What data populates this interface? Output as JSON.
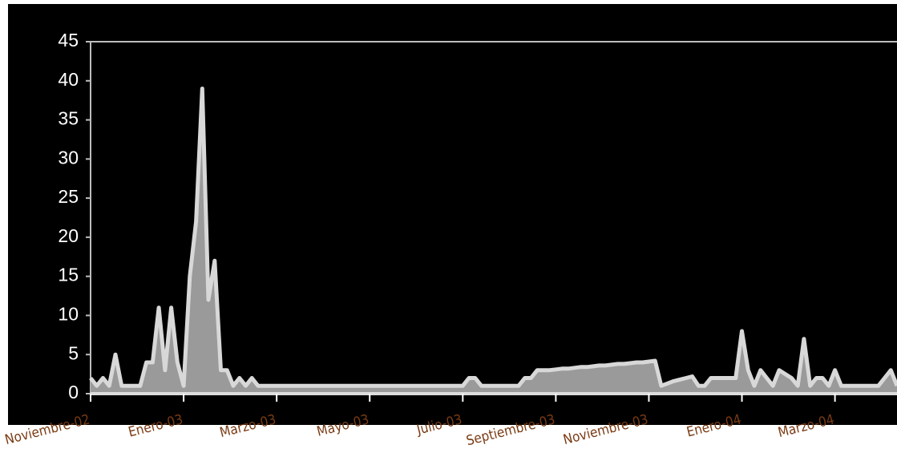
{
  "chart_data": {
    "type": "area",
    "categories": [
      "Noviembre-02",
      null,
      null,
      null,
      null,
      null,
      null,
      null,
      null,
      null,
      null,
      null,
      null,
      null,
      null,
      "Enero-03",
      null,
      null,
      null,
      null,
      null,
      null,
      null,
      null,
      null,
      null,
      null,
      null,
      null,
      null,
      "Marzo-03",
      null,
      null,
      null,
      null,
      null,
      null,
      null,
      null,
      null,
      null,
      null,
      null,
      null,
      null,
      "Mayo-03",
      null,
      null,
      null,
      null,
      null,
      null,
      null,
      null,
      null,
      null,
      null,
      null,
      null,
      null,
      "Julio-03",
      null,
      null,
      null,
      null,
      null,
      null,
      null,
      null,
      null,
      null,
      null,
      null,
      null,
      null,
      "Septiembre-03",
      null,
      null,
      null,
      null,
      null,
      null,
      null,
      null,
      null,
      null,
      null,
      null,
      null,
      null,
      "Noviembre-03",
      null,
      null,
      null,
      null,
      null,
      null,
      null,
      null,
      null,
      null,
      null,
      null,
      null,
      null,
      "Enero-04",
      null,
      null,
      null,
      null,
      null,
      null,
      null,
      null,
      null,
      null,
      null,
      null,
      null,
      null,
      "Marzo-04",
      null,
      null,
      null,
      null,
      null,
      null,
      null,
      null,
      null,
      null
    ],
    "values": [
      2,
      1,
      2,
      1,
      5,
      1,
      1,
      1,
      1,
      4,
      4,
      11,
      3,
      11,
      4,
      1,
      15,
      22,
      39,
      12,
      17,
      3,
      3,
      1,
      2,
      1,
      2,
      1,
      1,
      1,
      1,
      1,
      1,
      1,
      1,
      1,
      1,
      1,
      1,
      1,
      1,
      1,
      1,
      1,
      1,
      1,
      1,
      1,
      1,
      1,
      1,
      1,
      1,
      1,
      1,
      1,
      1,
      1,
      1,
      1,
      1,
      2,
      2,
      1,
      1,
      1,
      1,
      1,
      1,
      1,
      2,
      2,
      3,
      3,
      3,
      3.1,
      3.2,
      3.2,
      3.3,
      3.4,
      3.4,
      3.5,
      3.6,
      3.6,
      3.7,
      3.8,
      3.8,
      3.9,
      4,
      4,
      4.1,
      4.2,
      1,
      1.3,
      1.6,
      1.8,
      2,
      2.2,
      1,
      1,
      2,
      2,
      2,
      2,
      2,
      8,
      3,
      1,
      3,
      2,
      1,
      3,
      2.5,
      2,
      1,
      7,
      1,
      2,
      2,
      1,
      3,
      1,
      1,
      1,
      1,
      1,
      1,
      1,
      2,
      3,
      1
    ],
    "color": "#9a9a9a",
    "line_color": "#d8d8d8",
    "ylim": [
      0,
      45
    ],
    "yticks": [
      0,
      5,
      10,
      15,
      20,
      25,
      30,
      35,
      40,
      45
    ]
  }
}
